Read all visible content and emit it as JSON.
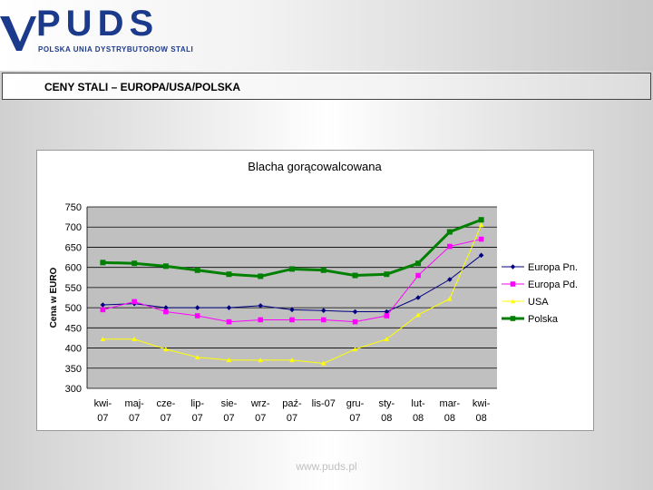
{
  "logo": {
    "wordmark": "PUDS",
    "subtitle": "POLSKA UNIA DYSTRYBUTOROW STALI"
  },
  "slide": {
    "title": "CENY STALI – EUROPA/USA/POLSKA",
    "footer": "www.puds.pl"
  },
  "colors": {
    "brand": "#1c3a8c",
    "plot_bg": "#c0c0c0"
  },
  "chart_data": {
    "type": "line",
    "title": "Blacha gorącowalcowana",
    "xlabel": "",
    "ylabel": "Cena w EURO",
    "ylim": [
      300,
      750
    ],
    "yticks": [
      300,
      350,
      400,
      450,
      500,
      550,
      600,
      650,
      700,
      750
    ],
    "grid": "horizontal",
    "legend": "right",
    "categories": [
      [
        "kwi-",
        "07"
      ],
      [
        "maj-",
        "07"
      ],
      [
        "cze-",
        "07"
      ],
      [
        "lip-",
        "07"
      ],
      [
        "sie-",
        "07"
      ],
      [
        "wrz-",
        "07"
      ],
      [
        "paź-",
        "07"
      ],
      [
        "lis-07",
        ""
      ],
      [
        "gru-",
        "07"
      ],
      [
        "sty-",
        "08"
      ],
      [
        "lut-",
        "08"
      ],
      [
        "mar-",
        "08"
      ],
      [
        "kwi-",
        "08"
      ]
    ],
    "series": [
      {
        "name": "Europa Pn.",
        "color": "#000080",
        "marker": "diamond",
        "values": [
          507,
          510,
          500,
          500,
          500,
          505,
          495,
          493,
          490,
          490,
          525,
          570,
          630
        ]
      },
      {
        "name": "Europa Pd.",
        "color": "#ff00ff",
        "marker": "square",
        "values": [
          495,
          515,
          490,
          480,
          465,
          470,
          470,
          470,
          465,
          480,
          580,
          652,
          670
        ]
      },
      {
        "name": "USA",
        "color": "#ffff00",
        "marker": "triangle",
        "values": [
          422,
          422,
          397,
          377,
          370,
          370,
          370,
          362,
          397,
          422,
          482,
          522,
          705
        ]
      },
      {
        "name": "Polska",
        "color": "#008000",
        "marker": "square",
        "values": [
          612,
          610,
          603,
          593,
          583,
          578,
          596,
          593,
          580,
          583,
          610,
          688,
          718
        ]
      }
    ]
  }
}
